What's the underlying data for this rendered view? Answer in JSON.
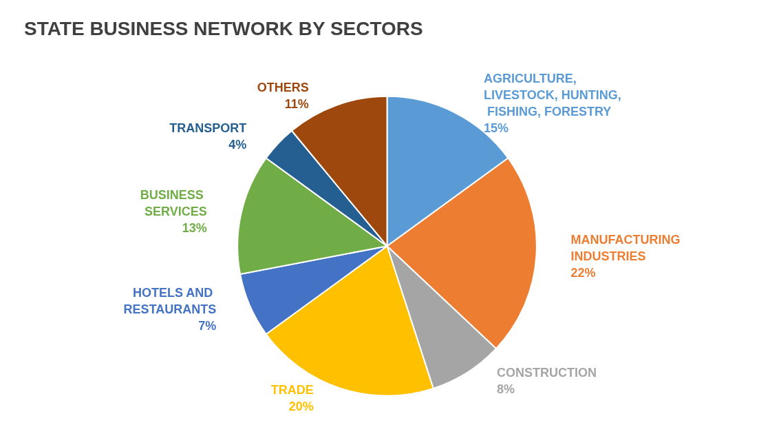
{
  "chart_data": {
    "type": "pie",
    "title": "STATE BUSINESS NETWORK BY SECTORS",
    "categories": [
      "AGRICULTURE, LIVESTOCK, HUNTING, FISHING, FORESTRY",
      "MANUFACTURING INDUSTRIES",
      "CONSTRUCTION",
      "TRADE",
      "HOTELS AND RESTAURANTS",
      "BUSINESS SERVICES",
      "TRANSPORT",
      "OTHERS"
    ],
    "values": [
      15,
      22,
      8,
      20,
      7,
      13,
      4,
      11
    ],
    "value_labels": [
      "15%",
      "22%",
      "8%",
      "20%",
      "7%",
      "13%",
      "4%",
      "11%"
    ],
    "colors": [
      "#5b9bd5",
      "#ed7d31",
      "#a5a5a5",
      "#ffc000",
      "#4472c4",
      "#70ad47",
      "#255e91",
      "#9e480e"
    ],
    "legend": false
  }
}
